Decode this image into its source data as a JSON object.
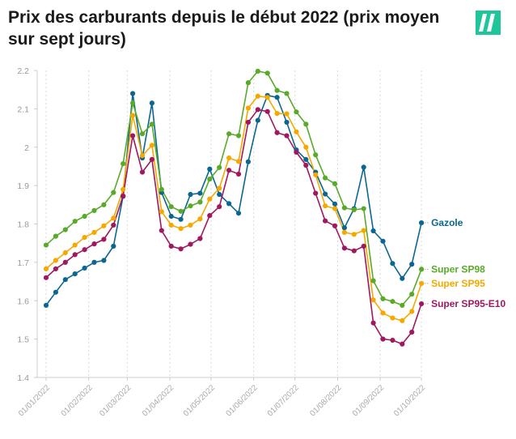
{
  "title": "Prix des carburants depuis le début 2022 (prix moyen sur sept jours)",
  "logo": {
    "brand_color": "#1ec69a"
  },
  "chart_data": {
    "type": "line",
    "title": "Prix des carburants depuis le début 2022 (prix moyen sur sept jours)",
    "xlabel": "",
    "ylabel": "",
    "ylim": [
      1.4,
      2.2
    ],
    "yticks": [
      1.4,
      1.5,
      1.6,
      1.7,
      1.8,
      1.9,
      2,
      2.1,
      2.2
    ],
    "ytick_labels": [
      "1.4",
      "1.5",
      "1.6",
      "1.7",
      "1.8",
      "1.9",
      "2",
      "2.1",
      "2.2"
    ],
    "xlim": [
      0,
      39.5
    ],
    "xticks": [
      {
        "pos": 0,
        "label": "01/01/2022"
      },
      {
        "pos": 4.43,
        "label": "01/02/2022"
      },
      {
        "pos": 8.43,
        "label": "01/03/2022"
      },
      {
        "pos": 12.86,
        "label": "01/04/2022"
      },
      {
        "pos": 17.14,
        "label": "01/05/2022"
      },
      {
        "pos": 21.57,
        "label": "01/06/2022"
      },
      {
        "pos": 25.86,
        "label": "01/07/2022"
      },
      {
        "pos": 30.29,
        "label": "01/08/2022"
      },
      {
        "pos": 34.71,
        "label": "01/09/2022"
      },
      {
        "pos": 39,
        "label": "01/10/2022"
      }
    ],
    "legend_position": "right, at the end of each line",
    "grid": "vertical dotted lines at month ticks",
    "series": [
      {
        "name": "Gazole",
        "color": "#0b6790",
        "values": [
          1.588,
          1.622,
          1.655,
          1.67,
          1.685,
          1.7,
          1.705,
          1.742,
          1.872,
          2.14,
          1.972,
          2.115,
          1.882,
          1.82,
          1.812,
          1.877,
          1.88,
          1.943,
          1.877,
          1.853,
          1.828,
          1.962,
          2.07,
          2.135,
          2.13,
          2.065,
          1.993,
          1.968,
          1.935,
          1.878,
          1.852,
          1.79,
          1.84,
          1.948,
          1.782,
          1.755,
          1.697,
          1.658,
          1.695,
          1.803
        ]
      },
      {
        "name": "Super SP98",
        "color": "#5aaa2a",
        "values": [
          1.745,
          1.768,
          1.785,
          1.807,
          1.82,
          1.835,
          1.85,
          1.882,
          1.957,
          2.115,
          2.035,
          2.06,
          1.89,
          1.845,
          1.833,
          1.847,
          1.857,
          1.917,
          1.947,
          2.035,
          2.03,
          2.168,
          2.198,
          2.193,
          2.148,
          2.14,
          2.092,
          2.06,
          1.98,
          1.92,
          1.905,
          1.842,
          1.837,
          1.84,
          1.652,
          1.605,
          1.598,
          1.588,
          1.617,
          1.682
        ]
      },
      {
        "name": "Super SP95",
        "color": "#f5a800",
        "values": [
          1.683,
          1.705,
          1.725,
          1.745,
          1.765,
          1.778,
          1.795,
          1.815,
          1.89,
          2.083,
          1.978,
          2.005,
          1.832,
          1.797,
          1.788,
          1.797,
          1.813,
          1.865,
          1.893,
          1.972,
          1.963,
          2.102,
          2.133,
          2.13,
          2.088,
          2.087,
          2.04,
          2.0,
          1.928,
          1.847,
          1.84,
          1.778,
          1.773,
          1.783,
          1.602,
          1.568,
          1.555,
          1.548,
          1.572,
          1.645
        ]
      },
      {
        "name": "Super SP95-E10",
        "color": "#a0185e",
        "values": [
          1.66,
          1.683,
          1.7,
          1.72,
          1.733,
          1.748,
          1.76,
          1.797,
          1.873,
          2.03,
          1.935,
          1.968,
          1.783,
          1.742,
          1.735,
          1.747,
          1.762,
          1.822,
          1.845,
          1.94,
          1.93,
          2.065,
          2.098,
          2.093,
          2.038,
          2.03,
          1.987,
          1.953,
          1.88,
          1.808,
          1.795,
          1.737,
          1.73,
          1.742,
          1.542,
          1.5,
          1.497,
          1.487,
          1.518,
          1.592
        ]
      }
    ],
    "end_labels": [
      {
        "series": "Gazole",
        "text": "Gazole"
      },
      {
        "series": "Super SP98",
        "text": "Super SP98"
      },
      {
        "series": "Super SP95",
        "text": "Super SP95"
      },
      {
        "series": "Super SP95-E10",
        "text": "Super SP95-E10"
      }
    ]
  }
}
